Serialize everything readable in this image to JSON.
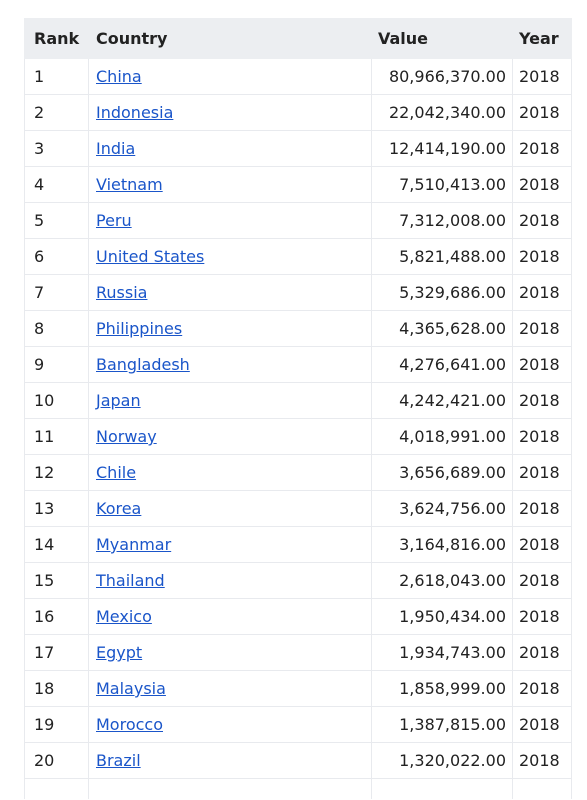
{
  "table": {
    "headers": {
      "rank": "Rank",
      "country": "Country",
      "value": "Value",
      "year": "Year"
    },
    "rows": [
      {
        "rank": "1",
        "country": "China",
        "value": "80,966,370.00",
        "year": "2018"
      },
      {
        "rank": "2",
        "country": "Indonesia",
        "value": "22,042,340.00",
        "year": "2018"
      },
      {
        "rank": "3",
        "country": "India",
        "value": "12,414,190.00",
        "year": "2018"
      },
      {
        "rank": "4",
        "country": "Vietnam",
        "value": "7,510,413.00",
        "year": "2018"
      },
      {
        "rank": "5",
        "country": "Peru",
        "value": "7,312,008.00",
        "year": "2018"
      },
      {
        "rank": "6",
        "country": "United States",
        "value": "5,821,488.00",
        "year": "2018"
      },
      {
        "rank": "7",
        "country": "Russia",
        "value": "5,329,686.00",
        "year": "2018"
      },
      {
        "rank": "8",
        "country": "Philippines",
        "value": "4,365,628.00",
        "year": "2018"
      },
      {
        "rank": "9",
        "country": "Bangladesh",
        "value": "4,276,641.00",
        "year": "2018"
      },
      {
        "rank": "10",
        "country": "Japan",
        "value": "4,242,421.00",
        "year": "2018"
      },
      {
        "rank": "11",
        "country": "Norway",
        "value": "4,018,991.00",
        "year": "2018"
      },
      {
        "rank": "12",
        "country": "Chile",
        "value": "3,656,689.00",
        "year": "2018"
      },
      {
        "rank": "13",
        "country": "Korea",
        "value": "3,624,756.00",
        "year": "2018"
      },
      {
        "rank": "14",
        "country": "Myanmar",
        "value": "3,164,816.00",
        "year": "2018"
      },
      {
        "rank": "15",
        "country": "Thailand",
        "value": "2,618,043.00",
        "year": "2018"
      },
      {
        "rank": "16",
        "country": "Mexico",
        "value": "1,950,434.00",
        "year": "2018"
      },
      {
        "rank": "17",
        "country": "Egypt",
        "value": "1,934,743.00",
        "year": "2018"
      },
      {
        "rank": "18",
        "country": "Malaysia",
        "value": "1,858,999.00",
        "year": "2018"
      },
      {
        "rank": "19",
        "country": "Morocco",
        "value": "1,387,815.00",
        "year": "2018"
      },
      {
        "rank": "20",
        "country": "Brazil",
        "value": "1,320,022.00",
        "year": "2018"
      }
    ]
  },
  "colors": {
    "header_bg": "#eceef1",
    "link": "#1a55c9",
    "grid": "#e8eaee"
  }
}
